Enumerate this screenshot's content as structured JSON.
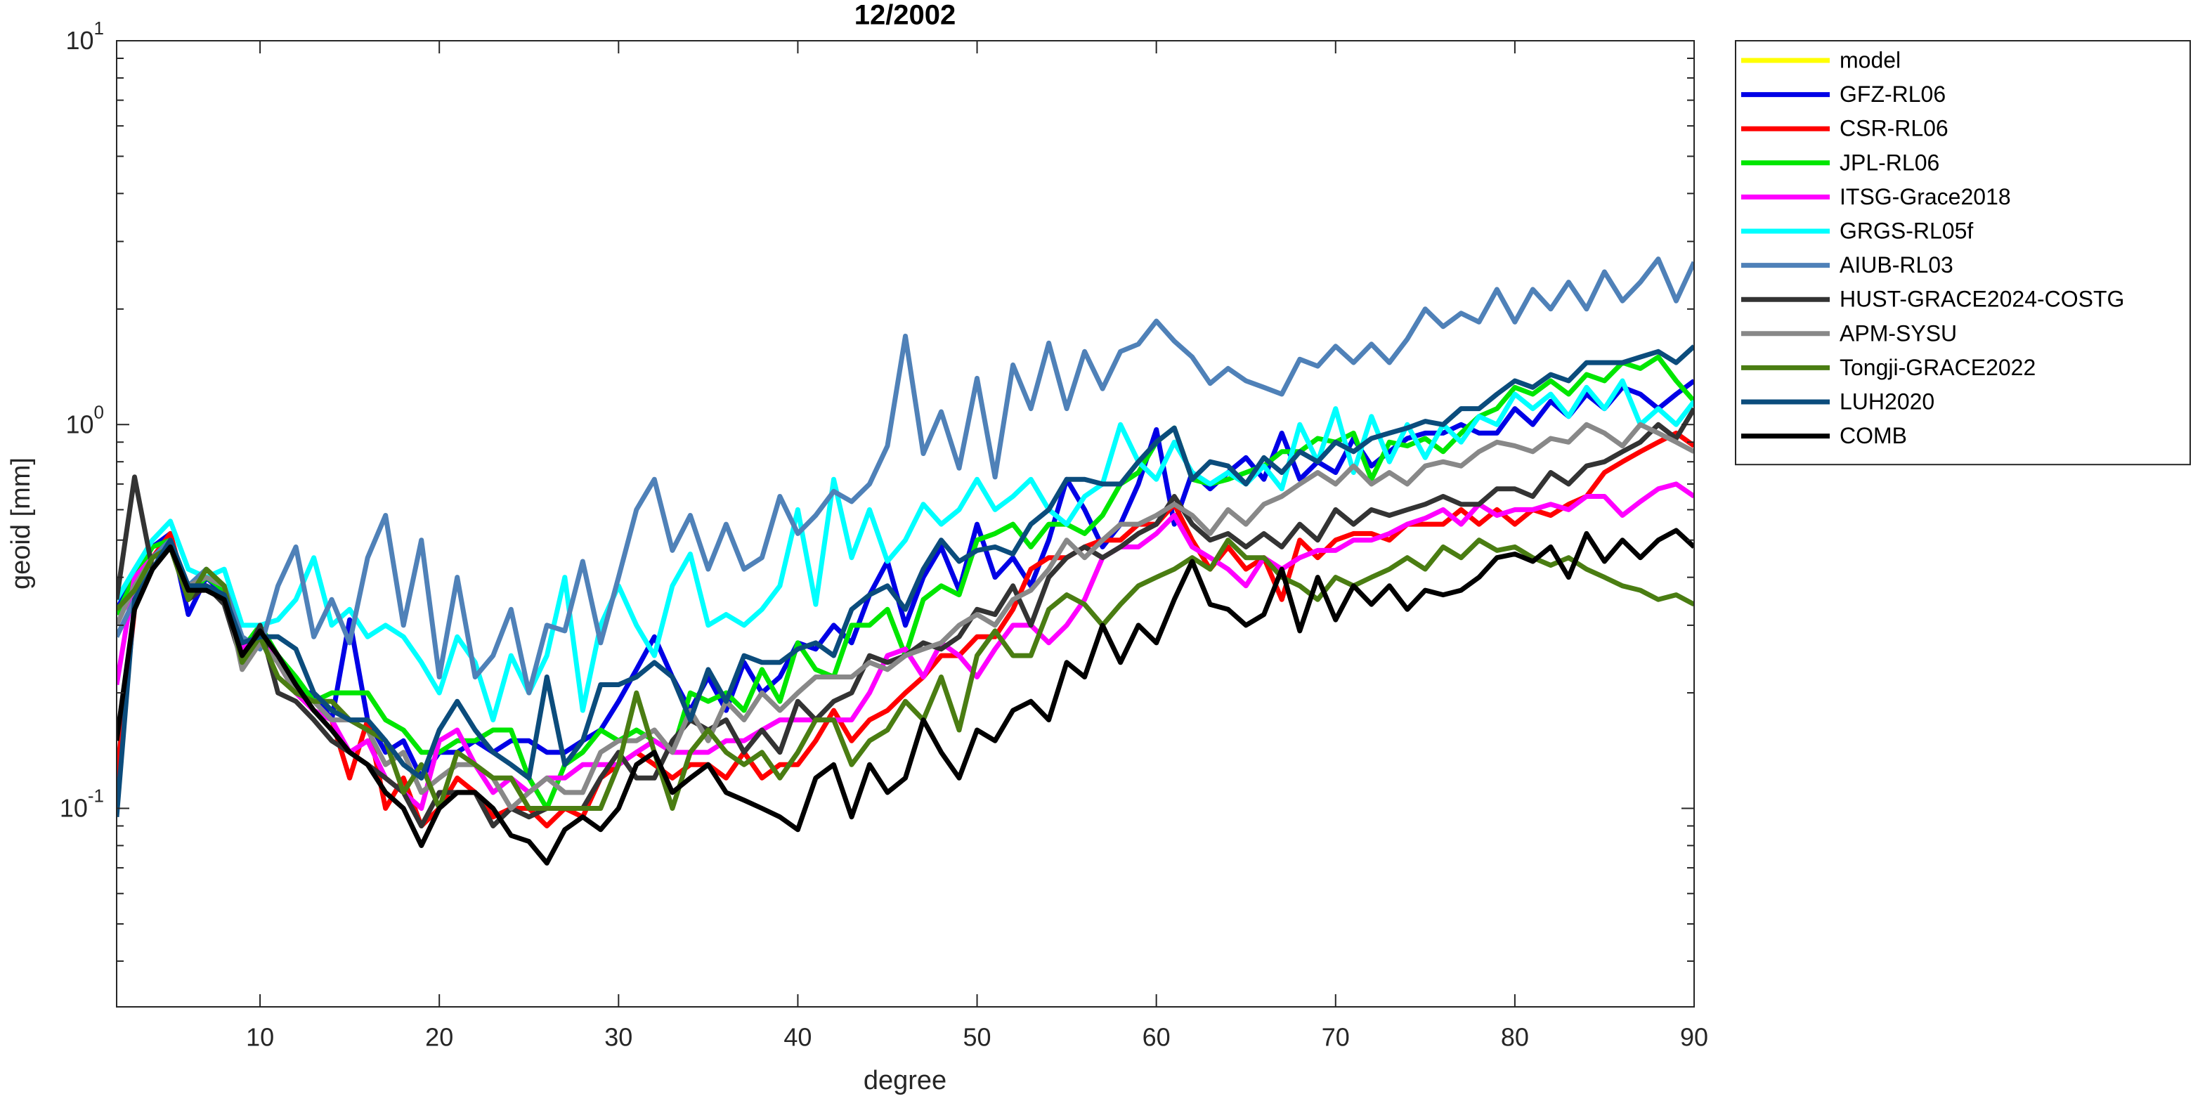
{
  "chart_data": {
    "type": "line",
    "title": "12/2002",
    "xlabel": "degree",
    "ylabel": "geoid [mm]",
    "log_y": true,
    "grid": false,
    "legend": "outside-northeast",
    "xlim": [
      2,
      90
    ],
    "xticks": [
      10,
      20,
      30,
      40,
      50,
      60,
      70,
      80,
      90
    ],
    "ylim": [
      0.0304,
      10
    ],
    "yticks": [
      {
        "value": 0.1,
        "label": "10",
        "exponent": "-1"
      },
      {
        "value": 1,
        "label": "10",
        "exponent": "0"
      },
      {
        "value": 10,
        "label": "10",
        "exponent": "1"
      }
    ],
    "yminorticks": [
      0.04,
      0.05,
      0.06,
      0.07,
      0.08,
      0.09,
      0.2,
      0.3,
      0.4,
      0.5,
      0.6,
      0.7,
      0.8,
      0.9,
      2,
      3,
      4,
      5,
      6,
      7,
      8,
      9
    ],
    "x": [
      2,
      3,
      4,
      5,
      6,
      7,
      8,
      9,
      10,
      11,
      12,
      13,
      14,
      15,
      16,
      17,
      18,
      19,
      20,
      21,
      22,
      23,
      24,
      25,
      26,
      27,
      28,
      29,
      30,
      31,
      32,
      33,
      34,
      35,
      36,
      37,
      38,
      39,
      40,
      41,
      42,
      43,
      44,
      45,
      46,
      47,
      48,
      49,
      50,
      51,
      52,
      53,
      54,
      55,
      56,
      57,
      58,
      59,
      60,
      61,
      62,
      63,
      64,
      65,
      66,
      67,
      68,
      69,
      70,
      71,
      72,
      73,
      74,
      75,
      76,
      77,
      78,
      79,
      80,
      81,
      82,
      83,
      84,
      85,
      86,
      87,
      88,
      89,
      90
    ],
    "series": [
      {
        "name": "model",
        "color": "#ffff00",
        "values": [
          null,
          null,
          null,
          null,
          null,
          null,
          null,
          null,
          null,
          null,
          null,
          null,
          null,
          null,
          null,
          null,
          null,
          null,
          null,
          null,
          null,
          null,
          null,
          null,
          null,
          null,
          null,
          null,
          null,
          null,
          null,
          null,
          null,
          null,
          null,
          null,
          null,
          null,
          null,
          null,
          null,
          null,
          null,
          null,
          null,
          null,
          null,
          null,
          null,
          null,
          null,
          null,
          null,
          null,
          null,
          null,
          null,
          null,
          null,
          null,
          null,
          null,
          null,
          null,
          null,
          null,
          null,
          null,
          null,
          null,
          null,
          null,
          null,
          null,
          null,
          null,
          null,
          null,
          null,
          null,
          null,
          null,
          null,
          null,
          null,
          null,
          null,
          null,
          null
        ]
      },
      {
        "name": "GFZ-RL06",
        "color": "#0000e6",
        "values": [
          0.33,
          0.4,
          0.48,
          0.52,
          0.32,
          0.4,
          0.36,
          0.27,
          0.28,
          0.24,
          0.2,
          0.2,
          0.17,
          0.31,
          0.17,
          0.14,
          0.15,
          0.12,
          0.14,
          0.14,
          0.15,
          0.14,
          0.15,
          0.15,
          0.14,
          0.14,
          0.15,
          0.16,
          0.19,
          0.23,
          0.28,
          0.22,
          0.18,
          0.22,
          0.18,
          0.24,
          0.2,
          0.22,
          0.27,
          0.26,
          0.3,
          0.27,
          0.36,
          0.44,
          0.3,
          0.4,
          0.48,
          0.37,
          0.55,
          0.4,
          0.45,
          0.38,
          0.5,
          0.72,
          0.6,
          0.48,
          0.55,
          0.7,
          0.97,
          0.55,
          0.75,
          0.68,
          0.75,
          0.82,
          0.72,
          0.95,
          0.72,
          0.8,
          0.75,
          0.92,
          0.78,
          0.85,
          0.92,
          0.95,
          0.95,
          1.0,
          0.95,
          0.95,
          1.1,
          1.0,
          1.15,
          1.05,
          1.2,
          1.1,
          1.25,
          1.2,
          1.1,
          1.2,
          1.3
        ]
      },
      {
        "name": "CSR-RL06",
        "color": "#ff0000",
        "values": [
          0.12,
          0.33,
          0.45,
          0.52,
          0.35,
          0.38,
          0.35,
          0.25,
          0.28,
          0.24,
          0.2,
          0.18,
          0.17,
          0.12,
          0.17,
          0.1,
          0.12,
          0.09,
          0.1,
          0.12,
          0.11,
          0.095,
          0.1,
          0.1,
          0.09,
          0.1,
          0.095,
          0.12,
          0.13,
          0.14,
          0.13,
          0.12,
          0.13,
          0.13,
          0.12,
          0.14,
          0.12,
          0.13,
          0.13,
          0.15,
          0.18,
          0.15,
          0.17,
          0.18,
          0.2,
          0.22,
          0.25,
          0.25,
          0.28,
          0.28,
          0.33,
          0.42,
          0.45,
          0.45,
          0.48,
          0.5,
          0.5,
          0.55,
          0.55,
          0.62,
          0.5,
          0.42,
          0.48,
          0.42,
          0.45,
          0.35,
          0.5,
          0.45,
          0.5,
          0.52,
          0.52,
          0.5,
          0.55,
          0.55,
          0.55,
          0.6,
          0.55,
          0.6,
          0.55,
          0.6,
          0.58,
          0.62,
          0.65,
          0.75,
          0.8,
          0.85,
          0.9,
          0.95,
          0.88
        ]
      },
      {
        "name": "JPL-RL06",
        "color": "#00e600",
        "values": [
          0.32,
          0.4,
          0.48,
          0.5,
          0.36,
          0.4,
          0.37,
          0.26,
          0.3,
          0.25,
          0.22,
          0.19,
          0.2,
          0.2,
          0.2,
          0.17,
          0.16,
          0.14,
          0.14,
          0.15,
          0.15,
          0.16,
          0.16,
          0.12,
          0.1,
          0.13,
          0.14,
          0.16,
          0.15,
          0.16,
          0.15,
          0.14,
          0.2,
          0.19,
          0.2,
          0.18,
          0.23,
          0.19,
          0.27,
          0.23,
          0.22,
          0.3,
          0.3,
          0.33,
          0.25,
          0.35,
          0.38,
          0.36,
          0.5,
          0.52,
          0.55,
          0.48,
          0.55,
          0.55,
          0.52,
          0.58,
          0.7,
          0.75,
          0.9,
          0.98,
          0.72,
          0.7,
          0.72,
          0.75,
          0.78,
          0.85,
          0.85,
          0.92,
          0.9,
          0.95,
          0.72,
          0.9,
          0.88,
          0.92,
          0.85,
          0.95,
          1.05,
          1.1,
          1.25,
          1.2,
          1.3,
          1.2,
          1.35,
          1.3,
          1.45,
          1.4,
          1.5,
          1.3,
          1.15
        ]
      },
      {
        "name": "ITSG-Grace2018",
        "color": "#ff00ff",
        "values": [
          0.21,
          0.4,
          0.45,
          0.5,
          0.36,
          0.38,
          0.36,
          0.26,
          0.28,
          0.24,
          0.2,
          0.18,
          0.17,
          0.14,
          0.15,
          0.12,
          0.11,
          0.1,
          0.15,
          0.16,
          0.13,
          0.11,
          0.12,
          0.11,
          0.12,
          0.12,
          0.13,
          0.13,
          0.13,
          0.14,
          0.15,
          0.14,
          0.14,
          0.14,
          0.15,
          0.15,
          0.16,
          0.17,
          0.17,
          0.17,
          0.17,
          0.17,
          0.2,
          0.25,
          0.26,
          0.22,
          0.27,
          0.25,
          0.22,
          0.26,
          0.3,
          0.3,
          0.27,
          0.3,
          0.35,
          0.45,
          0.48,
          0.48,
          0.52,
          0.58,
          0.48,
          0.45,
          0.42,
          0.38,
          0.45,
          0.42,
          0.45,
          0.47,
          0.47,
          0.5,
          0.5,
          0.52,
          0.55,
          0.57,
          0.6,
          0.55,
          0.62,
          0.58,
          0.6,
          0.6,
          0.62,
          0.6,
          0.65,
          0.65,
          0.58,
          0.63,
          0.68,
          0.7,
          0.65
        ]
      },
      {
        "name": "GRGS-RL05f",
        "color": "#00ffff",
        "values": [
          0.35,
          0.42,
          0.5,
          0.56,
          0.42,
          0.4,
          0.42,
          0.3,
          0.3,
          0.31,
          0.35,
          0.45,
          0.3,
          0.33,
          0.28,
          0.3,
          0.28,
          0.24,
          0.2,
          0.28,
          0.24,
          0.17,
          0.25,
          0.2,
          0.25,
          0.4,
          0.18,
          0.3,
          0.38,
          0.3,
          0.25,
          0.38,
          0.46,
          0.3,
          0.32,
          0.3,
          0.33,
          0.38,
          0.6,
          0.34,
          0.72,
          0.45,
          0.6,
          0.44,
          0.5,
          0.62,
          0.55,
          0.6,
          0.72,
          0.6,
          0.65,
          0.72,
          0.6,
          0.55,
          0.65,
          0.7,
          1.0,
          0.8,
          0.72,
          0.9,
          0.75,
          0.7,
          0.75,
          0.7,
          0.78,
          0.68,
          1.0,
          0.8,
          1.1,
          0.75,
          1.05,
          0.8,
          1.0,
          0.82,
          1.0,
          0.9,
          1.05,
          1.0,
          1.2,
          1.1,
          1.2,
          1.05,
          1.25,
          1.1,
          1.3,
          1.0,
          1.1,
          1.0,
          1.15
        ]
      },
      {
        "name": "AIUB-RL03",
        "color": "#4f81b8",
        "values": [
          0.28,
          0.35,
          0.45,
          0.5,
          0.38,
          0.42,
          0.38,
          0.28,
          0.26,
          0.38,
          0.48,
          0.28,
          0.35,
          0.27,
          0.45,
          0.58,
          0.3,
          0.5,
          0.22,
          0.4,
          0.22,
          0.25,
          0.33,
          0.2,
          0.3,
          0.29,
          0.44,
          0.27,
          0.4,
          0.6,
          0.72,
          0.47,
          0.58,
          0.42,
          0.55,
          0.42,
          0.45,
          0.65,
          0.52,
          0.58,
          0.67,
          0.63,
          0.7,
          0.88,
          1.7,
          0.84,
          1.08,
          0.77,
          1.32,
          0.73,
          1.43,
          1.1,
          1.63,
          1.1,
          1.55,
          1.24,
          1.55,
          1.62,
          1.86,
          1.65,
          1.5,
          1.28,
          1.4,
          1.3,
          1.25,
          1.2,
          1.48,
          1.42,
          1.6,
          1.45,
          1.62,
          1.45,
          1.67,
          2.0,
          1.8,
          1.95,
          1.85,
          2.25,
          1.85,
          2.25,
          2.0,
          2.35,
          2.0,
          2.5,
          2.1,
          2.35,
          2.7,
          2.1,
          2.65
        ]
      },
      {
        "name": "HUST-GRACE2024-COSTG",
        "color": "#333333",
        "values": [
          0.35,
          0.73,
          0.42,
          0.48,
          0.35,
          0.38,
          0.34,
          0.24,
          0.3,
          0.2,
          0.19,
          0.17,
          0.15,
          0.14,
          0.13,
          0.12,
          0.11,
          0.09,
          0.11,
          0.11,
          0.11,
          0.09,
          0.1,
          0.095,
          0.1,
          0.1,
          0.1,
          0.12,
          0.14,
          0.12,
          0.12,
          0.15,
          0.17,
          0.16,
          0.17,
          0.14,
          0.16,
          0.14,
          0.19,
          0.17,
          0.19,
          0.2,
          0.25,
          0.24,
          0.25,
          0.27,
          0.26,
          0.28,
          0.33,
          0.32,
          0.38,
          0.3,
          0.4,
          0.45,
          0.48,
          0.45,
          0.48,
          0.52,
          0.55,
          0.65,
          0.55,
          0.5,
          0.52,
          0.48,
          0.52,
          0.48,
          0.55,
          0.5,
          0.6,
          0.55,
          0.6,
          0.58,
          0.6,
          0.62,
          0.65,
          0.62,
          0.62,
          0.68,
          0.68,
          0.65,
          0.75,
          0.7,
          0.78,
          0.8,
          0.85,
          0.9,
          1.0,
          0.92,
          1.1
        ]
      },
      {
        "name": "APM-SYSU",
        "color": "#888888",
        "values": [
          0.3,
          0.38,
          0.45,
          0.48,
          0.38,
          0.4,
          0.38,
          0.23,
          0.27,
          0.24,
          0.2,
          0.19,
          0.17,
          0.17,
          0.16,
          0.13,
          0.14,
          0.11,
          0.12,
          0.13,
          0.13,
          0.12,
          0.1,
          0.11,
          0.12,
          0.11,
          0.11,
          0.14,
          0.15,
          0.15,
          0.16,
          0.14,
          0.18,
          0.15,
          0.19,
          0.17,
          0.2,
          0.18,
          0.2,
          0.22,
          0.22,
          0.22,
          0.24,
          0.23,
          0.25,
          0.26,
          0.27,
          0.3,
          0.32,
          0.3,
          0.35,
          0.37,
          0.42,
          0.5,
          0.45,
          0.5,
          0.55,
          0.55,
          0.58,
          0.62,
          0.58,
          0.52,
          0.6,
          0.55,
          0.62,
          0.65,
          0.7,
          0.75,
          0.7,
          0.78,
          0.7,
          0.75,
          0.7,
          0.78,
          0.8,
          0.78,
          0.85,
          0.9,
          0.88,
          0.85,
          0.92,
          0.9,
          1.0,
          0.95,
          0.88,
          1.0,
          0.95,
          0.9,
          0.85
        ]
      },
      {
        "name": "Tongji-GRACE2022",
        "color": "#4a7d12",
        "values": [
          0.33,
          0.37,
          0.45,
          0.48,
          0.35,
          0.42,
          0.38,
          0.24,
          0.28,
          0.22,
          0.2,
          0.19,
          0.19,
          0.17,
          0.16,
          0.15,
          0.11,
          0.13,
          0.1,
          0.14,
          0.13,
          0.12,
          0.12,
          0.1,
          0.1,
          0.1,
          0.1,
          0.1,
          0.13,
          0.2,
          0.14,
          0.1,
          0.14,
          0.16,
          0.14,
          0.13,
          0.14,
          0.12,
          0.14,
          0.17,
          0.17,
          0.13,
          0.15,
          0.16,
          0.19,
          0.17,
          0.22,
          0.16,
          0.25,
          0.29,
          0.25,
          0.25,
          0.33,
          0.36,
          0.34,
          0.3,
          0.34,
          0.38,
          0.4,
          0.42,
          0.45,
          0.42,
          0.5,
          0.45,
          0.45,
          0.4,
          0.38,
          0.35,
          0.4,
          0.38,
          0.4,
          0.42,
          0.45,
          0.42,
          0.48,
          0.45,
          0.5,
          0.47,
          0.48,
          0.45,
          0.43,
          0.45,
          0.42,
          0.4,
          0.38,
          0.37,
          0.35,
          0.36,
          0.34
        ]
      },
      {
        "name": "LUH2020",
        "color": "#0b4c7c",
        "values": [
          0.095,
          0.35,
          0.42,
          0.5,
          0.38,
          0.38,
          0.36,
          0.27,
          0.28,
          0.28,
          0.26,
          0.2,
          0.18,
          0.17,
          0.17,
          0.15,
          0.13,
          0.12,
          0.16,
          0.19,
          0.16,
          0.14,
          0.13,
          0.12,
          0.22,
          0.13,
          0.15,
          0.21,
          0.21,
          0.22,
          0.24,
          0.22,
          0.17,
          0.23,
          0.19,
          0.25,
          0.24,
          0.24,
          0.26,
          0.27,
          0.25,
          0.33,
          0.36,
          0.38,
          0.33,
          0.42,
          0.5,
          0.44,
          0.47,
          0.48,
          0.46,
          0.55,
          0.6,
          0.72,
          0.72,
          0.7,
          0.7,
          0.8,
          0.9,
          0.98,
          0.72,
          0.8,
          0.78,
          0.7,
          0.82,
          0.75,
          0.85,
          0.8,
          0.9,
          0.85,
          0.92,
          0.95,
          0.98,
          1.02,
          1.0,
          1.1,
          1.1,
          1.2,
          1.3,
          1.25,
          1.35,
          1.3,
          1.45,
          1.45,
          1.45,
          1.5,
          1.55,
          1.45,
          1.6
        ]
      },
      {
        "name": "COMB",
        "color": "#000000",
        "values": [
          0.15,
          0.33,
          0.42,
          0.48,
          0.37,
          0.37,
          0.35,
          0.25,
          0.29,
          0.25,
          0.21,
          0.18,
          0.16,
          0.14,
          0.13,
          0.11,
          0.1,
          0.08,
          0.1,
          0.11,
          0.11,
          0.1,
          0.085,
          0.082,
          0.072,
          0.088,
          0.095,
          0.088,
          0.1,
          0.13,
          0.14,
          0.11,
          0.12,
          0.13,
          0.11,
          0.105,
          0.1,
          0.095,
          0.088,
          0.12,
          0.13,
          0.095,
          0.13,
          0.11,
          0.12,
          0.17,
          0.14,
          0.12,
          0.16,
          0.15,
          0.18,
          0.19,
          0.17,
          0.24,
          0.22,
          0.3,
          0.24,
          0.3,
          0.27,
          0.35,
          0.44,
          0.34,
          0.33,
          0.3,
          0.32,
          0.42,
          0.29,
          0.4,
          0.31,
          0.38,
          0.34,
          0.38,
          0.33,
          0.37,
          0.36,
          0.37,
          0.4,
          0.45,
          0.46,
          0.44,
          0.48,
          0.4,
          0.52,
          0.44,
          0.5,
          0.45,
          0.5,
          0.53,
          0.48
        ]
      }
    ]
  }
}
